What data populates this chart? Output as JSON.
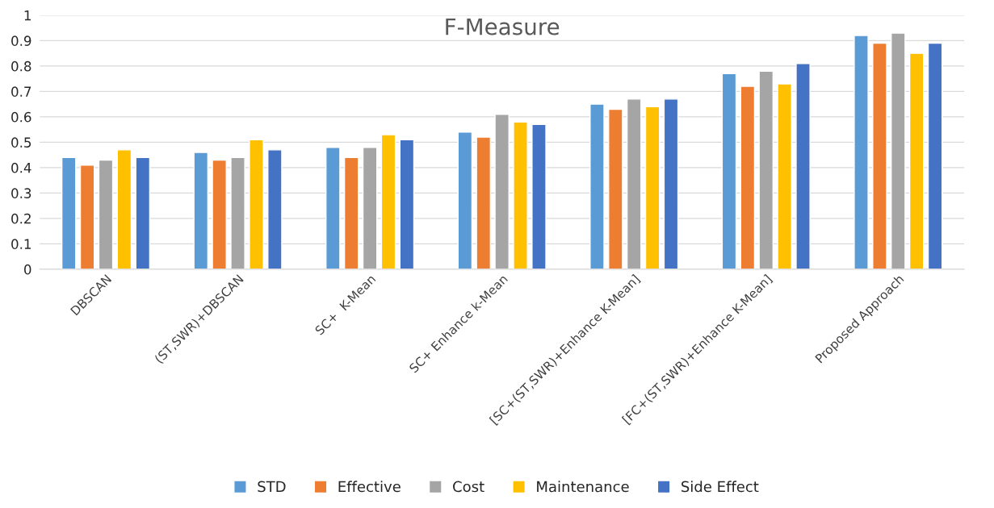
{
  "chart_data": {
    "type": "bar",
    "title": "F-Measure",
    "categories": [
      "DBSCAN",
      "(ST,SWR)+DBSCAN",
      "SC+  K-Mean",
      "SC+ Enhance k-Mean",
      "[SC+(ST,SWR)+Enhance K-Mean]",
      "[FC+(ST,SWR)+Enhance K-Mean]",
      "Proposed Approach"
    ],
    "series": [
      {
        "name": "STD",
        "color": "#5b9bd5",
        "values": [
          0.44,
          0.46,
          0.48,
          0.54,
          0.65,
          0.77,
          0.92
        ]
      },
      {
        "name": "Effective",
        "color": "#ed7d31",
        "values": [
          0.41,
          0.43,
          0.44,
          0.52,
          0.63,
          0.72,
          0.89
        ]
      },
      {
        "name": "Cost",
        "color": "#a5a5a5",
        "values": [
          0.43,
          0.44,
          0.48,
          0.61,
          0.67,
          0.78,
          0.93
        ]
      },
      {
        "name": "Maintenance",
        "color": "#ffc000",
        "values": [
          0.47,
          0.51,
          0.53,
          0.58,
          0.64,
          0.73,
          0.85
        ]
      },
      {
        "name": "Side Effect",
        "color": "#4472c4",
        "values": [
          0.44,
          0.47,
          0.51,
          0.57,
          0.67,
          0.81,
          0.89
        ]
      }
    ],
    "ylim": [
      0,
      1
    ],
    "yticks": [
      0,
      0.1,
      0.2,
      0.3,
      0.4,
      0.5,
      0.6,
      0.7,
      0.8,
      0.9,
      1
    ],
    "grid": "y",
    "legend": "bottom"
  }
}
